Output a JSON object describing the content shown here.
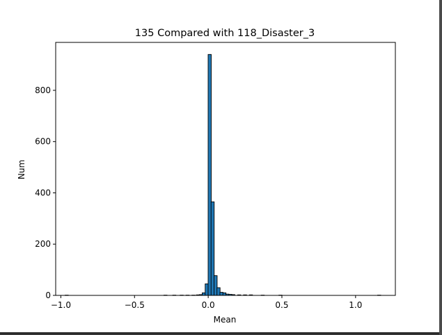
{
  "chart_data": {
    "type": "bar",
    "title": "135 Compared with 118_Disaster_3",
    "xlabel": "Mean",
    "ylabel": "Num",
    "xlim": [
      -1.035,
      1.27
    ],
    "ylim": [
      0,
      987
    ],
    "xticks": [
      -1.0,
      -0.5,
      0.0,
      0.5,
      1.0
    ],
    "xtick_labels": [
      "−1.0",
      "−0.5",
      "0.0",
      "0.5",
      "1.0"
    ],
    "yticks": [
      0,
      200,
      400,
      600,
      800
    ],
    "ytick_labels": [
      "0",
      "200",
      "400",
      "600",
      "800"
    ],
    "bar_color": "#1f77b4",
    "edge_color": "#000000",
    "bin_width": 0.0212,
    "bins": [
      {
        "x": -0.96,
        "value": 1
      },
      {
        "x": -0.29,
        "value": 1
      },
      {
        "x": -0.23,
        "value": 1
      },
      {
        "x": -0.18,
        "value": 1
      },
      {
        "x": -0.14,
        "value": 1
      },
      {
        "x": -0.1,
        "value": 1
      },
      {
        "x": -0.07,
        "value": 2
      },
      {
        "x": -0.05,
        "value": 3
      },
      {
        "x": -0.03,
        "value": 10
      },
      {
        "x": -0.01,
        "value": 45
      },
      {
        "x": 0.01,
        "value": 940
      },
      {
        "x": 0.03,
        "value": 365
      },
      {
        "x": 0.05,
        "value": 77
      },
      {
        "x": 0.07,
        "value": 30
      },
      {
        "x": 0.09,
        "value": 12
      },
      {
        "x": 0.11,
        "value": 10
      },
      {
        "x": 0.13,
        "value": 5
      },
      {
        "x": 0.15,
        "value": 4
      },
      {
        "x": 0.17,
        "value": 3
      },
      {
        "x": 0.21,
        "value": 2
      },
      {
        "x": 0.25,
        "value": 2
      },
      {
        "x": 0.29,
        "value": 2
      },
      {
        "x": 0.37,
        "value": 1
      },
      {
        "x": 0.49,
        "value": 1
      },
      {
        "x": 1.16,
        "value": 1
      }
    ]
  }
}
